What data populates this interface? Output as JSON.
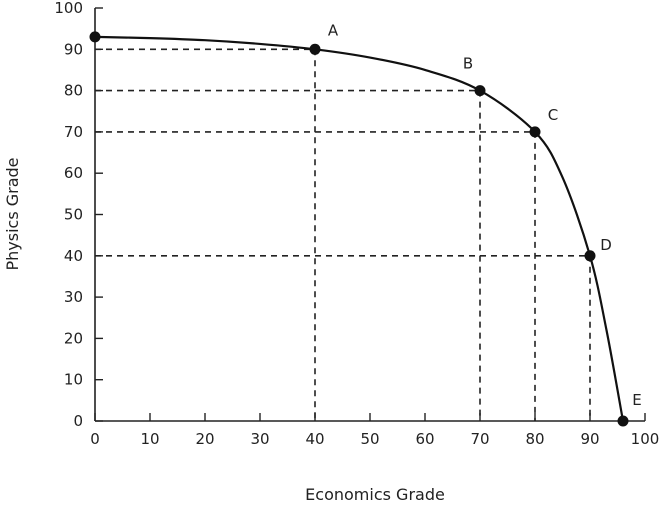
{
  "chart_data": {
    "type": "line",
    "title": "",
    "xlabel": "Economics Grade",
    "ylabel": "Physics Grade",
    "xlim": [
      0,
      100
    ],
    "ylim": [
      0,
      100
    ],
    "x_ticks": [
      "0",
      "10",
      "20",
      "30",
      "40",
      "50",
      "60",
      "70",
      "80",
      "90",
      "100"
    ],
    "y_ticks": [
      "0",
      "10",
      "20",
      "30",
      "40",
      "50",
      "60",
      "70",
      "80",
      "90",
      "100"
    ],
    "grid": false,
    "curve": {
      "color": "#111111",
      "x": [
        0,
        10,
        20,
        30,
        40,
        50,
        60,
        70,
        80,
        85,
        90,
        93,
        96
      ],
      "y": [
        93,
        92.7,
        92.2,
        91.3,
        90,
        88,
        85,
        80,
        70,
        59,
        40,
        22,
        0
      ]
    },
    "points": [
      {
        "label": "",
        "x": 0,
        "y": 93
      },
      {
        "label": "A",
        "x": 40,
        "y": 90
      },
      {
        "label": "B",
        "x": 70,
        "y": 80
      },
      {
        "label": "C",
        "x": 80,
        "y": 70
      },
      {
        "label": "D",
        "x": 90,
        "y": 40
      },
      {
        "label": "E",
        "x": 96,
        "y": 0
      }
    ],
    "reference_lines": [
      {
        "x": 40,
        "y": 90
      },
      {
        "x": 70,
        "y": 80
      },
      {
        "x": 80,
        "y": 70
      },
      {
        "x": 90,
        "y": 40
      }
    ]
  }
}
